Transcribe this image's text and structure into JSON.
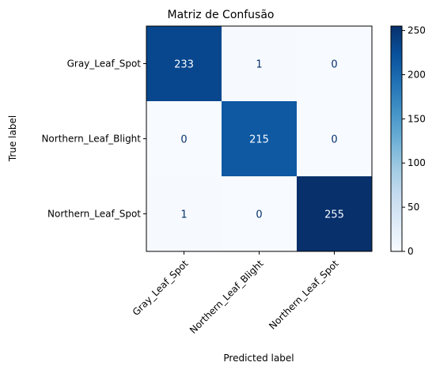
{
  "chart_data": {
    "type": "heatmap",
    "title": "Matriz de Confusão",
    "xlabel": "Predicted label",
    "ylabel": "True label",
    "x_categories": [
      "Gray_Leaf_Spot",
      "Northern_Leaf_Blight",
      "Northern_Leaf_Spot"
    ],
    "y_categories": [
      "Gray_Leaf_Spot",
      "Northern_Leaf_Blight",
      "Northern_Leaf_Spot"
    ],
    "values": [
      [
        233,
        1,
        0
      ],
      [
        0,
        215,
        0
      ],
      [
        1,
        0,
        255
      ]
    ],
    "colormap": "Blues",
    "color_low": "#f7fbff",
    "color_high": "#08306b",
    "colorbar": {
      "range": [
        0,
        255
      ],
      "ticks": [
        0,
        50,
        100,
        150,
        200,
        250
      ]
    },
    "grid": false
  }
}
